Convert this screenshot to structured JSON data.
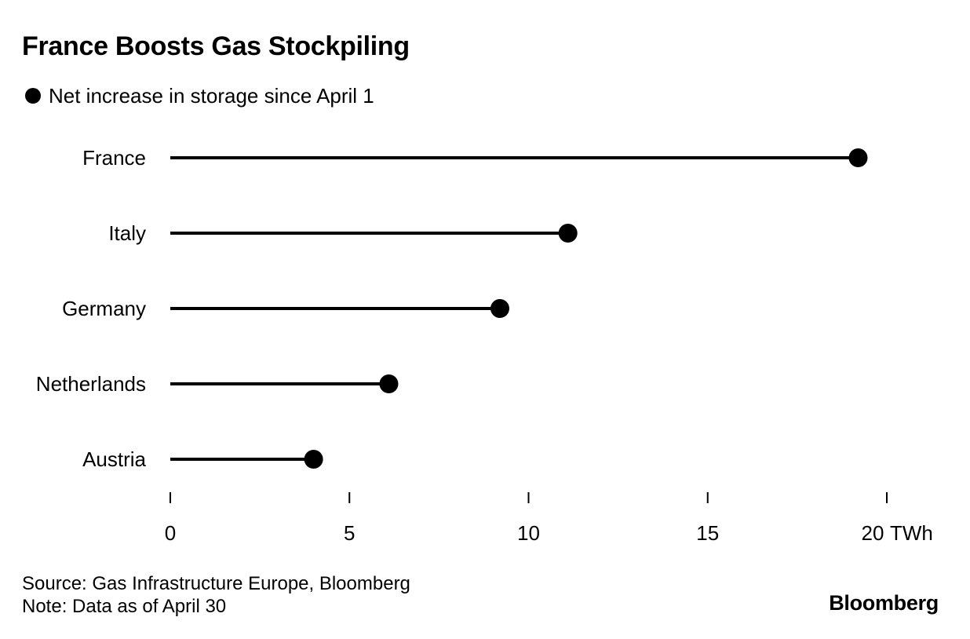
{
  "chart_data": {
    "type": "lollipop",
    "title": "France Boosts Gas Stockpiling",
    "legend": {
      "entries": [
        "Net increase in storage since April 1"
      ],
      "placement": "top-left"
    },
    "categories": [
      "France",
      "Italy",
      "Germany",
      "Netherlands",
      "Austria"
    ],
    "series": [
      {
        "name": "Net increase in storage since April 1",
        "values": [
          19.2,
          11.1,
          9.2,
          6.1,
          4.0
        ]
      }
    ],
    "x_ticks": [
      0,
      5,
      10,
      15,
      20
    ],
    "x_unit": "TWh",
    "xlim": [
      0,
      20
    ],
    "grid": false,
    "colors": {
      "line": "#000000",
      "dot": "#000000"
    }
  },
  "footer": {
    "source": "Source: Gas Infrastructure Europe, Bloomberg",
    "note": "Note: Data as of April 30",
    "brand": "Bloomberg"
  }
}
